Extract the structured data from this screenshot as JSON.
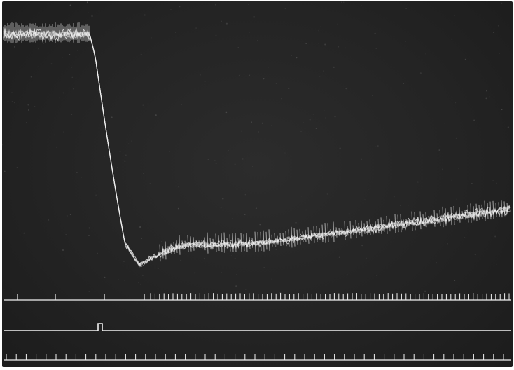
{
  "photo": {
    "subject": "oscilloscope-trace",
    "colors": {
      "screen": "#262626",
      "trace": "#f2f2f2",
      "frame": "#ffffff"
    }
  }
}
